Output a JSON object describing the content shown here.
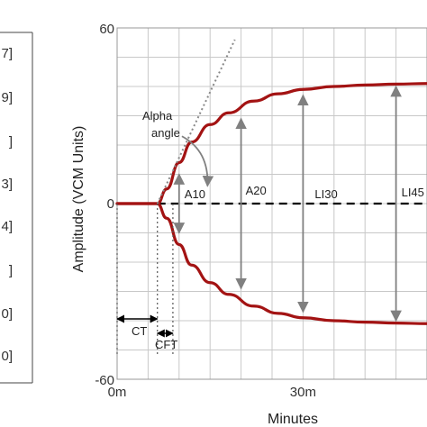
{
  "chart_data": {
    "type": "line",
    "xlabel": "Minutes",
    "ylabel": "Amplitude (VCM Units)",
    "xlim": [
      0,
      50
    ],
    "ylim": [
      -60,
      60
    ],
    "x_ticks": [
      "0m",
      "30m"
    ],
    "x_tick_values": [
      0,
      30
    ],
    "y_ticks": [
      "60",
      "0",
      "-60"
    ],
    "y_tick_values": [
      60,
      0,
      -60
    ],
    "grid": true,
    "colors": {
      "curve": "#a31313",
      "arrow": "#808080",
      "grid": "#c8c8c8",
      "dash": "#000000"
    },
    "series": [
      {
        "x": [
          0,
          4,
          6.5,
          8,
          10,
          12,
          15,
          18,
          22,
          26,
          30,
          35,
          40,
          45,
          50
        ],
        "y": [
          0,
          0,
          0,
          5,
          14,
          21,
          27,
          31,
          35,
          37.5,
          39,
          40,
          40.5,
          40.8,
          41
        ]
      },
      {
        "x": [
          0,
          4,
          6.5,
          8,
          10,
          12,
          15,
          18,
          22,
          26,
          30,
          35,
          40,
          45,
          50
        ],
        "y": [
          0,
          0,
          0,
          -5,
          -14,
          -21,
          -27,
          -31,
          -35,
          -37.5,
          -39,
          -40,
          -40.5,
          -40.8,
          -41
        ]
      }
    ],
    "annotations": {
      "alpha_label_line1": "Alpha",
      "alpha_label_line2": "angle",
      "a10": "A10",
      "a20": "A20",
      "li30": "LI30",
      "li45": "LI45",
      "ct": "CT",
      "cft": "CFT"
    },
    "markers": {
      "ct_x": 6.5,
      "cft_x": 9,
      "a10": {
        "x": 10,
        "y_top": 10,
        "y_bottom": -10
      },
      "a20": {
        "x": 20,
        "y_top": 29,
        "y_bottom": -29
      },
      "li30": {
        "x": 30,
        "y_top": 37,
        "y_bottom": -37
      },
      "li45": {
        "x": 45,
        "y_top": 40,
        "y_bottom": -40
      }
    },
    "left_panel_labels": [
      "7]",
      "9]",
      "]",
      "3]",
      "4]",
      "]",
      "0]",
      "0]"
    ]
  }
}
